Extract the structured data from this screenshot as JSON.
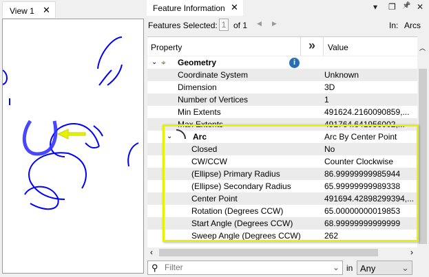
{
  "view": {
    "tab_label": "View 1",
    "close": "✕"
  },
  "panel": {
    "tab_label": "Feature Information",
    "close": "✕",
    "menu": "▾",
    "restore": "❐",
    "pin": "📌",
    "close_panel": "✕"
  },
  "selection": {
    "label": "Features Selected:",
    "index": "1",
    "of": "of 1",
    "in_label": "In:",
    "layer": "Arcs"
  },
  "grid": {
    "col_property": "Property",
    "col_value": "Value",
    "expand": "»",
    "geometry": {
      "label": "Geometry",
      "rows": [
        {
          "p": "Coordinate System",
          "v": "Unknown"
        },
        {
          "p": "Dimension",
          "v": "3D"
        },
        {
          "p": "Number of Vertices",
          "v": "1"
        },
        {
          "p": "Min Extents",
          "v": "491624.2160090859,..."
        },
        {
          "p": "Max Extents",
          "v": "491764.641956002,..."
        }
      ]
    },
    "arc": {
      "label": "Arc",
      "value": "Arc By Center Point",
      "rows": [
        {
          "p": "Closed",
          "v": "No"
        },
        {
          "p": "CW/CCW",
          "v": "Counter Clockwise"
        },
        {
          "p": "(Ellipse) Primary Radius",
          "v": "86.99999999985944"
        },
        {
          "p": "(Ellipse) Secondary Radius",
          "v": "65.99999999989338"
        },
        {
          "p": "Center Point",
          "v": "491694.42898299394,..."
        },
        {
          "p": "Rotation (Degrees CCW)",
          "v": "65.00000000019853"
        },
        {
          "p": "Start Angle (Degrees CCW)",
          "v": "68.99999999999999"
        },
        {
          "p": "Sweep Angle (Degrees CCW)",
          "v": "262"
        }
      ]
    }
  },
  "filter": {
    "placeholder": "Filter",
    "in_label": "in",
    "scope": "Any"
  },
  "colors": {
    "arc": "#0000ff",
    "highlight": "#e6f200"
  }
}
